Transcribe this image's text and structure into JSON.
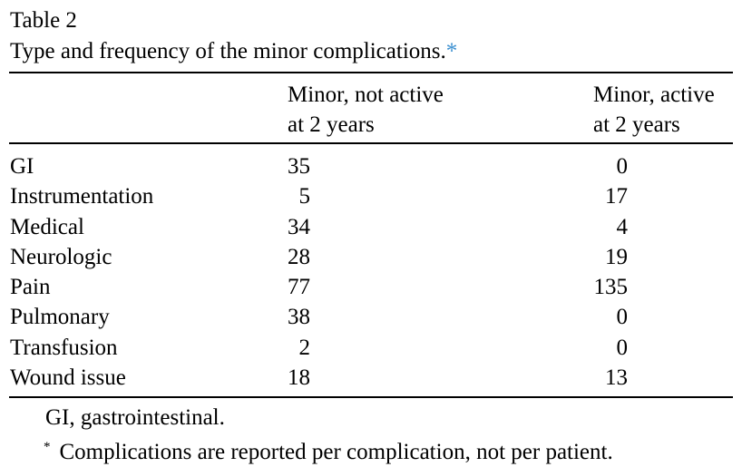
{
  "caption": {
    "label": "Table 2",
    "title": "Type and frequency of the minor complications.",
    "footnote_mark": "*"
  },
  "table": {
    "columns": [
      {
        "line1": "Minor, not active",
        "line2": "at 2 years"
      },
      {
        "line1": "Minor, active",
        "line2": "at 2 years"
      }
    ],
    "rows": [
      {
        "label": "GI",
        "not_active": "35",
        "active": "0"
      },
      {
        "label": "Instrumentation",
        "not_active": "5",
        "active": "17"
      },
      {
        "label": "Medical",
        "not_active": "34",
        "active": "4"
      },
      {
        "label": "Neurologic",
        "not_active": "28",
        "active": "19"
      },
      {
        "label": "Pain",
        "not_active": "77",
        "active": "135"
      },
      {
        "label": "Pulmonary",
        "not_active": "38",
        "active": "0"
      },
      {
        "label": "Transfusion",
        "not_active": "2",
        "active": "0"
      },
      {
        "label": "Wound issue",
        "not_active": "18",
        "active": "13"
      }
    ]
  },
  "footnotes": {
    "abbrev": "GI, gastrointestinal.",
    "asterisk": "*",
    "note": "Complications are reported per complication, not per patient."
  }
}
